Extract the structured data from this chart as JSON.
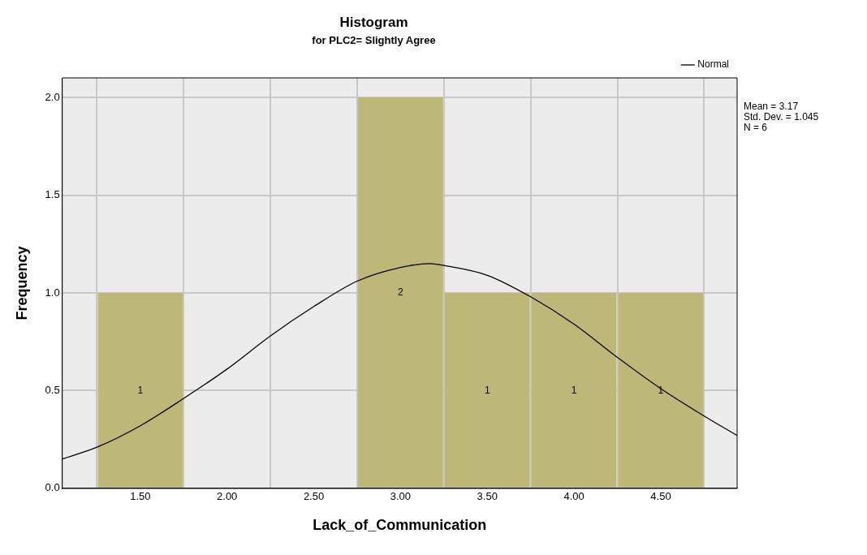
{
  "chart_data": {
    "type": "histogram",
    "title": "Histogram",
    "subtitle": "for PLC2= Slightly Agree",
    "xlabel": "Lack_of_Communication",
    "ylabel": "Frequency",
    "bins": [
      1.25,
      1.75,
      2.25,
      2.75,
      3.25,
      3.75,
      4.25,
      4.75
    ],
    "values": [
      1,
      0,
      0,
      2,
      1,
      1,
      1
    ],
    "color": "#bdb877",
    "value_labels": [
      "1",
      null,
      null,
      "2",
      "1",
      "1",
      "1"
    ],
    "series": [
      {
        "name": "Normal",
        "type": "line",
        "color": "#000000",
        "marker": "none",
        "x": [
          1.05,
          1.25,
          1.5,
          1.75,
          2.0,
          2.25,
          2.5,
          2.75,
          3.0,
          3.17,
          3.25,
          3.5,
          3.75,
          4.0,
          4.25,
          4.5,
          4.75,
          4.94
        ],
        "values": [
          0.15,
          0.21,
          0.32,
          0.46,
          0.61,
          0.78,
          0.93,
          1.06,
          1.13,
          1.15,
          1.14,
          1.09,
          0.98,
          0.84,
          0.67,
          0.51,
          0.37,
          0.27
        ]
      }
    ],
    "xlim": [
      1.05,
      4.94
    ],
    "xticks": [
      {
        "value": 1.5,
        "label": "1.50"
      },
      {
        "value": 2,
        "label": "2.00"
      },
      {
        "value": 2.5,
        "label": "2.50"
      },
      {
        "value": 3,
        "label": "3.00"
      },
      {
        "value": 3.5,
        "label": "3.50"
      },
      {
        "value": 4,
        "label": "4.00"
      },
      {
        "value": 4.5,
        "label": "4.50"
      }
    ],
    "ylim": [
      0,
      2.1
    ],
    "yticks": [
      {
        "value": 0,
        "label": "0.0"
      },
      {
        "value": 0.5,
        "label": "0.5"
      },
      {
        "value": 1,
        "label": "1.0"
      },
      {
        "value": 1.5,
        "label": "1.5"
      },
      {
        "value": 2,
        "label": "2.0"
      }
    ],
    "grid": true,
    "legend": "top right",
    "annotations": [
      "Mean = 3.17",
      "Std. Dev. = 1.045",
      "N = 6"
    ]
  }
}
